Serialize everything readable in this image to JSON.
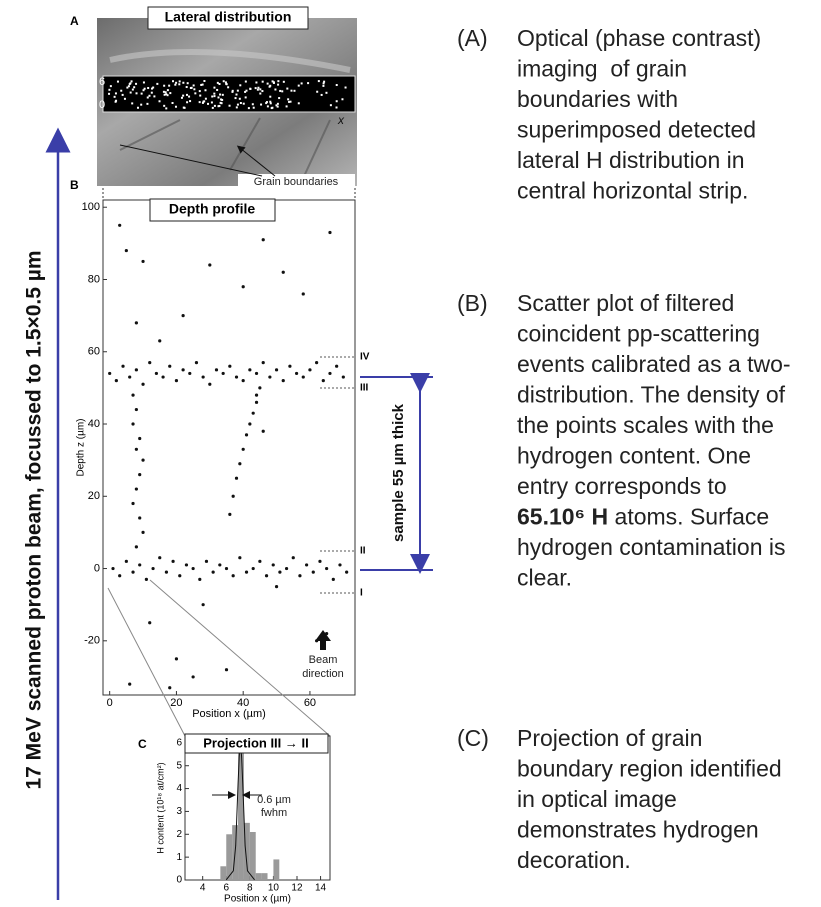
{
  "side_label": "17 MeV scanned proton beam, focussed to 1.5×0.5 µm",
  "panel_a": {
    "label": "A",
    "title": "Lateral distribution",
    "y_label": "y",
    "y_ticks": [
      6,
      0
    ],
    "x_label": "x",
    "annotation": "Grain boundaries"
  },
  "panel_b_extras": {
    "label": "B",
    "levels": [
      "IV",
      "III",
      "II",
      "I"
    ],
    "beam": [
      "Beam",
      "direction"
    ],
    "sample_annotation": "sample 55 µm thick"
  },
  "panel_c_extras": {
    "label": "C",
    "fwhm": [
      "0.6 µm",
      "fwhm"
    ]
  },
  "chart_data": [
    {
      "type": "scatter",
      "title": "Depth profile",
      "xlabel": "Position x (µm)",
      "ylabel": "Depth z (µm)",
      "xlim": [
        -2,
        73.5
      ],
      "ylim": [
        -35,
        102
      ],
      "xticks": [
        0,
        20,
        40,
        60
      ],
      "yticks": [
        -20,
        0,
        20,
        40,
        60,
        80,
        100
      ],
      "color": "#111111",
      "x": [
        0,
        2,
        4,
        6,
        8,
        10,
        12,
        14,
        16,
        18,
        20,
        22,
        24,
        26,
        28,
        30,
        32,
        34,
        36,
        38,
        40,
        42,
        44,
        46,
        48,
        50,
        52,
        54,
        56,
        58,
        60,
        62,
        64,
        66,
        68,
        70,
        1,
        3,
        5,
        7,
        9,
        11,
        13,
        15,
        17,
        19,
        21,
        23,
        25,
        27,
        29,
        31,
        33,
        35,
        37,
        39,
        41,
        43,
        45,
        47,
        49,
        51,
        53,
        55,
        57,
        59,
        61,
        63,
        65,
        67,
        69,
        71,
        7,
        8,
        7,
        9,
        8,
        10,
        9,
        8,
        7,
        9,
        10,
        8,
        45,
        44,
        43,
        42,
        41,
        40,
        39,
        38,
        37,
        36,
        44,
        46,
        5,
        10,
        22,
        30,
        46,
        52,
        66,
        8,
        15,
        3,
        40,
        58,
        62,
        20,
        25,
        12,
        28,
        35,
        50,
        65,
        6,
        18
      ],
      "y": [
        54,
        52,
        56,
        53,
        55,
        51,
        57,
        54,
        53,
        56,
        52,
        55,
        54,
        57,
        53,
        51,
        55,
        54,
        56,
        53,
        52,
        55,
        54,
        57,
        53,
        55,
        52,
        56,
        54,
        53,
        55,
        57,
        52,
        54,
        56,
        53,
        0,
        -2,
        2,
        -1,
        1,
        -3,
        0,
        3,
        -1,
        2,
        -2,
        1,
        0,
        -3,
        2,
        -1,
        1,
        0,
        -2,
        3,
        -1,
        0,
        2,
        -2,
        1,
        -1,
        0,
        3,
        -2,
        1,
        -1,
        2,
        0,
        -3,
        1,
        -1,
        48,
        44,
        40,
        36,
        33,
        30,
        26,
        22,
        18,
        14,
        10,
        6,
        50,
        46,
        43,
        40,
        37,
        33,
        29,
        25,
        20,
        15,
        48,
        38,
        88,
        85,
        70,
        84,
        91,
        82,
        93,
        68,
        63,
        95,
        78,
        76,
        -20,
        -25,
        -30,
        -15,
        -10,
        -28,
        -5,
        -18,
        -32,
        -33
      ]
    },
    {
      "type": "histogram",
      "title": "Projection III → II",
      "xlabel": "Position x (µm)",
      "ylabel": "H content (10¹⁸ at/cm²)",
      "xlim": [
        2.5,
        14.8
      ],
      "ylim": [
        0,
        6.3
      ],
      "xticks": [
        4,
        6,
        8,
        10,
        12,
        14
      ],
      "yticks": [
        0,
        1,
        2,
        3,
        4,
        5,
        6
      ],
      "color": "#9a9a9a",
      "bins": [
        5.5,
        6,
        6.5,
        7,
        7.5,
        8,
        8.5,
        9,
        9.5,
        10,
        10.5
      ],
      "counts": [
        0.6,
        2.0,
        2.4,
        5.9,
        2.5,
        2.1,
        0.3,
        0.3,
        0,
        0.9
      ],
      "fit_x": [
        6,
        6.6,
        6.8,
        7,
        7.1,
        7.2,
        7.3,
        7.4,
        7.6,
        7.8,
        8.4
      ],
      "fit_y": [
        0.01,
        0.4,
        1.5,
        4.2,
        5.4,
        6,
        5.4,
        4.2,
        1.5,
        0.4,
        0.01
      ]
    }
  ],
  "descriptions": [
    {
      "letter": "(A)",
      "lines": [
        "Optical (phase contrast)",
        "imaging  of grain",
        "boundaries with",
        "superimposed detected",
        "lateral H distribution in",
        "central horizontal strip."
      ]
    },
    {
      "letter": "(B)",
      "lines": [
        "Scatter plot of filtered",
        "coincident pp-scattering",
        "events calibrated as a two-",
        "distribution. The density of",
        "the points scales with the",
        "hydrogen content. One",
        "entry corresponds to",
        {
          "bold": "65.10⁶ H",
          "text": " atoms. Surface"
        },
        "hydrogen contamination is",
        "clear."
      ]
    },
    {
      "letter": "(C)",
      "lines": [
        "Projection of grain",
        "boundary region identified",
        "in optical image",
        "demonstrates hydrogen",
        "decoration."
      ]
    }
  ]
}
